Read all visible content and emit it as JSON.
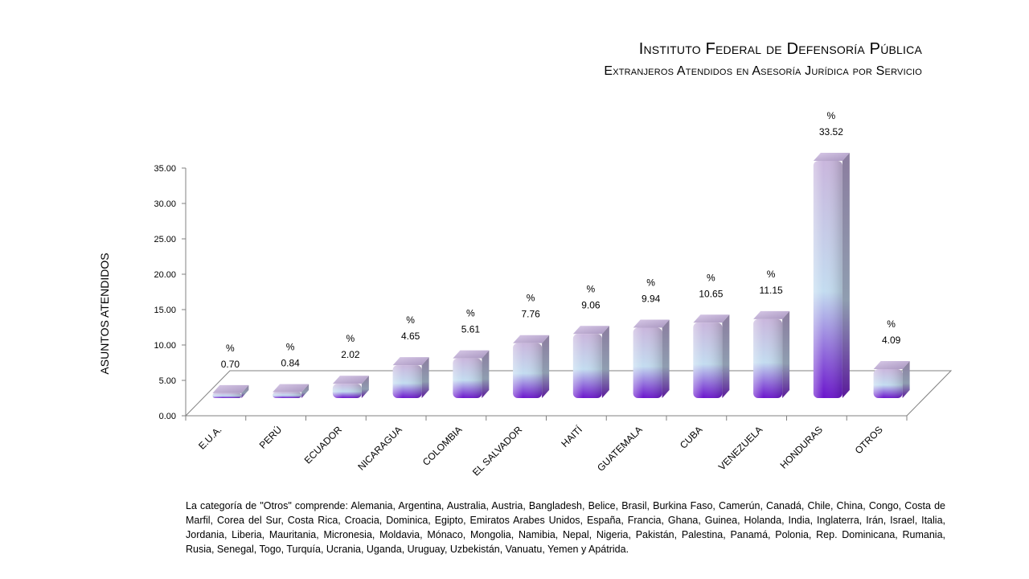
{
  "header": {
    "title": "Instituto Federal de Defensoría Pública",
    "subtitle": "Extranjeros Atendidos en Asesoría Jurídica por Servicio"
  },
  "note": "La categoría de \"Otros\" comprende: Alemania, Argentina, Australia, Austria, Bangladesh, Belice, Brasil, Burkina Faso, Camerún, Canadá, Chile, China, Congo, Costa de Marfil, Corea del Sur, Costa Rica, Croacia, Dominica, Egipto, Emiratos Arabes Unidos, España, Francia, Ghana, Guinea, Holanda, India, Inglaterra, Irán, Israel, Italia, Jordania, Liberia, Mauritania, Micronesia, Moldavia, Mónaco, Mongolia, Namibia, Nepal, Nigeria, Pakistán, Palestina, Panamá, Polonia, Rep. Dominicana, Rumania, Rusia, Senegal, Togo, Turquía, Ucrania, Uganda, Uruguay, Uzbekistán, Vanuatu, Yemen y Apátrida.",
  "chart_data": {
    "type": "bar",
    "ylabel": "ASUNTOS ATENDIDOS",
    "xlabel": "",
    "ylim": [
      0,
      35
    ],
    "yticks": [
      "0.00",
      "5.00",
      "10.00",
      "15.00",
      "20.00",
      "25.00",
      "30.00",
      "35.00"
    ],
    "categories": [
      "E.U.A.",
      "PERÚ",
      "ECUADOR",
      "NICARAGUA",
      "COLOMBIA",
      "EL SALVADOR",
      "HAITÍ",
      "GUATEMALA",
      "CUBA",
      "VENEZUELA",
      "HONDURAS",
      "OTROS"
    ],
    "values": [
      0.7,
      0.84,
      2.02,
      4.65,
      5.61,
      7.76,
      9.06,
      9.94,
      10.65,
      11.15,
      33.52,
      4.09
    ],
    "value_labels": [
      "0.70",
      "0.84",
      "2.02",
      "4.65",
      "5.61",
      "7.76",
      "9.06",
      "9.94",
      "10.65",
      "11.15",
      "33.52",
      "4.09"
    ],
    "unit_label": "%",
    "colors": {
      "top": "#c9b6dd",
      "mid": "#c3dcf0",
      "bottom": "#6a14cc",
      "side": "#8a7aa0",
      "floor": "#808080"
    },
    "grid": false,
    "legend": "none"
  }
}
